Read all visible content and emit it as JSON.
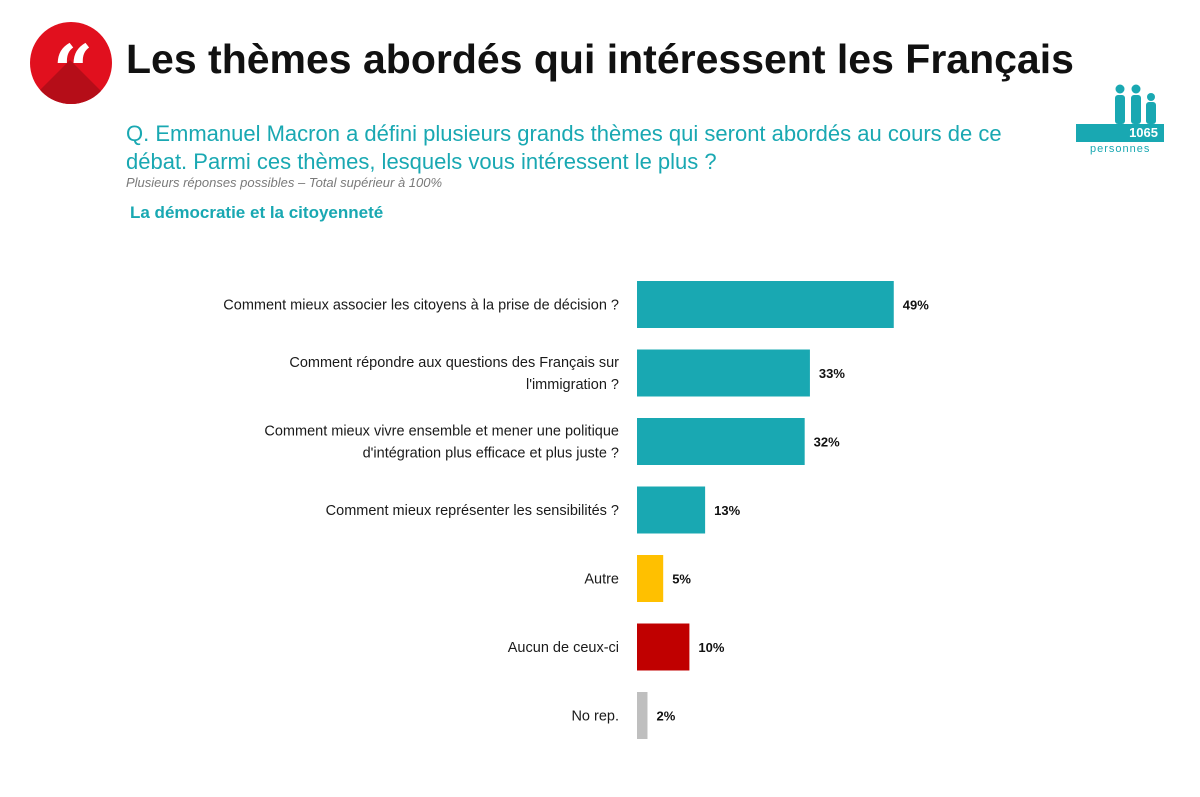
{
  "header": {
    "title": "Les thèmes abordés qui intéressent les Français",
    "question": "Q. Emmanuel Macron a défini plusieurs grands thèmes qui seront abordés au cours de ce débat. Parmi ces thèmes, lesquels vous intéressent le plus ?",
    "note": "Plusieurs réponses possibles – Total supérieur à 100%",
    "section": "La démocratie et la citoyenneté",
    "quote_icon": "quote-icon",
    "quote_glyph": "“"
  },
  "sample": {
    "count": "1065",
    "unit": "personnes",
    "icon": "people-icon"
  },
  "colors": {
    "brand_red": "#e1101e",
    "teal": "#19a8b2",
    "other": "#ffc000",
    "none": "#c00000",
    "no_answer": "#bfbfbf"
  },
  "chart_data": {
    "type": "bar",
    "orientation": "horizontal",
    "categories": [
      [
        "Comment mieux associer les citoyens à la prise de décision ?"
      ],
      [
        "Comment répondre aux questions des Français sur",
        "l'immigration ?"
      ],
      [
        "Comment mieux vivre ensemble et mener une politique",
        "d'intégration plus efficace et plus juste ?"
      ],
      [
        "Comment mieux représenter les sensibilités ?"
      ],
      [
        "Autre"
      ],
      [
        "Aucun de ceux-ci"
      ],
      [
        "No rep."
      ]
    ],
    "values": [
      49,
      33,
      32,
      13,
      5,
      10,
      2
    ],
    "value_labels": [
      "49%",
      "33%",
      "32%",
      "13%",
      "5%",
      "10%",
      "2%"
    ],
    "bar_colors": [
      "#19a8b2",
      "#19a8b2",
      "#19a8b2",
      "#19a8b2",
      "#ffc000",
      "#c00000",
      "#bfbfbf"
    ],
    "unit": "%",
    "xlim": [
      0,
      100
    ],
    "grid": false,
    "legend": "none"
  }
}
